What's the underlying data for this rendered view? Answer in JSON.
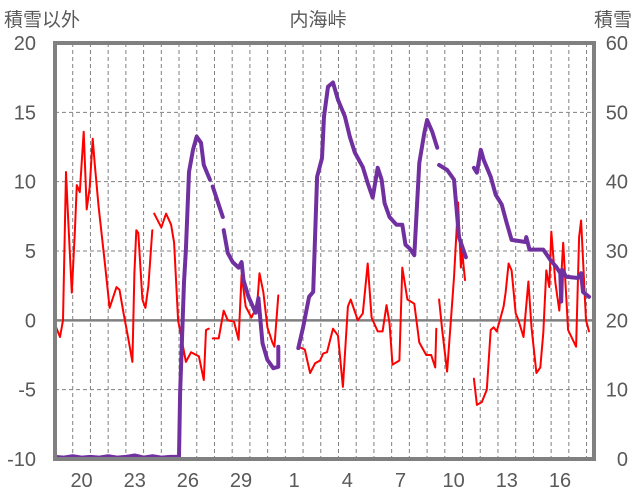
{
  "chart_data": {
    "type": "line",
    "title": "内海峠",
    "ylabel_left": "積雪以外",
    "ylabel_right": "積雪",
    "ylim_left": [
      -10,
      20
    ],
    "ylim_right": [
      0,
      60
    ],
    "yticks_left": [
      "20",
      "15",
      "10",
      "5",
      "0",
      "-5",
      "-10"
    ],
    "yticks_left_values": [
      20,
      15,
      10,
      5,
      0,
      -5,
      -10
    ],
    "yticks_right": [
      "60",
      "50",
      "40",
      "30",
      "20",
      "10",
      "0"
    ],
    "yticks_right_values": [
      60,
      50,
      40,
      30,
      20,
      10,
      0
    ],
    "x_unit": "days since start of day 19",
    "xlim": [
      0,
      30.42
    ],
    "xticks": [
      "20",
      "23",
      "26",
      "29",
      "1",
      "4",
      "7",
      "10",
      "13",
      "16"
    ],
    "xticks_values": [
      1.5,
      4.5,
      7.5,
      10.5,
      13.5,
      16.5,
      19.5,
      22.5,
      25.5,
      28.5
    ],
    "grid": true,
    "series": [
      {
        "name": "積雪以外",
        "axis": "left",
        "color": "#ff0000",
        "segments": [
          [
            [
              0.06,
              -0.5
            ],
            [
              0.28,
              -1.2
            ],
            [
              0.45,
              0.0
            ],
            [
              0.62,
              10.7
            ],
            [
              0.73,
              7.7
            ],
            [
              0.95,
              2.0
            ],
            [
              1.12,
              6.3
            ],
            [
              1.23,
              9.75
            ],
            [
              1.4,
              9.25
            ],
            [
              1.62,
              13.6
            ],
            [
              1.79,
              8.0
            ],
            [
              1.96,
              9.6
            ],
            [
              2.13,
              13.1
            ],
            [
              2.24,
              11.3
            ],
            [
              2.46,
              8.2
            ],
            [
              2.8,
              4.3
            ],
            [
              3.08,
              0.9
            ],
            [
              3.47,
              2.4
            ],
            [
              3.64,
              2.2
            ],
            [
              3.87,
              0.5
            ],
            [
              4.15,
              -1.4
            ],
            [
              4.37,
              -3.0
            ],
            [
              4.48,
              3.4
            ],
            [
              4.59,
              6.5
            ],
            [
              4.7,
              6.3
            ],
            [
              4.93,
              1.5
            ],
            [
              5.1,
              0.9
            ],
            [
              5.27,
              2.5
            ],
            [
              5.49,
              6.5
            ]
          ],
          [
            [
              5.6,
              7.7
            ],
            [
              6.0,
              6.7
            ],
            [
              6.27,
              7.7
            ],
            [
              6.55,
              6.9
            ],
            [
              6.72,
              5.6
            ],
            [
              6.95,
              0.0
            ],
            [
              7.39,
              -3.0
            ],
            [
              7.68,
              -2.3
            ],
            [
              8.12,
              -2.6
            ],
            [
              8.4,
              -4.3
            ],
            [
              8.52,
              -0.7
            ],
            [
              8.68,
              -0.6
            ]
          ],
          [
            [
              8.9,
              -1.3
            ],
            [
              9.24,
              -1.3
            ],
            [
              9.52,
              0.7
            ],
            [
              9.75,
              0.0
            ],
            [
              10.1,
              -0.1
            ],
            [
              10.36,
              -1.4
            ],
            [
              10.53,
              3.3
            ],
            [
              10.76,
              1.0
            ],
            [
              11.09,
              0.2
            ],
            [
              11.2,
              0.5
            ],
            [
              11.37,
              0.5
            ],
            [
              11.54,
              3.4
            ],
            [
              11.76,
              2.0
            ],
            [
              11.99,
              -0.5
            ],
            [
              12.27,
              -1.6
            ],
            [
              12.38,
              -1.9
            ],
            [
              12.6,
              1.8
            ]
          ],
          [
            [
              13.73,
              -1.9
            ],
            [
              14.1,
              -2.1
            ],
            [
              14.4,
              -3.8
            ],
            [
              14.68,
              -3.1
            ],
            [
              14.96,
              -2.9
            ],
            [
              15.13,
              -2.4
            ],
            [
              15.35,
              -2.3
            ],
            [
              15.69,
              -0.6
            ],
            [
              15.97,
              -1.1
            ],
            [
              16.25,
              -4.8
            ],
            [
              16.53,
              1.0
            ],
            [
              16.69,
              1.5
            ],
            [
              17.09,
              0.0
            ],
            [
              17.37,
              0.5
            ],
            [
              17.65,
              4.1
            ],
            [
              17.87,
              0.2
            ],
            [
              18.21,
              -0.8
            ],
            [
              18.49,
              -0.8
            ],
            [
              18.71,
              1.1
            ],
            [
              18.88,
              -0.2
            ],
            [
              19.05,
              -3.2
            ],
            [
              19.44,
              -2.9
            ],
            [
              19.6,
              3.8
            ],
            [
              19.89,
              1.5
            ],
            [
              20.28,
              1.2
            ],
            [
              20.56,
              -1.6
            ],
            [
              20.95,
              -2.5
            ],
            [
              21.23,
              -2.5
            ],
            [
              21.46,
              -3.4
            ],
            [
              21.52,
              -0.6
            ]
          ],
          [
            [
              21.68,
              1.5
            ],
            [
              21.85,
              -0.7
            ],
            [
              22.13,
              -3.7
            ],
            [
              22.41,
              1.2
            ],
            [
              22.52,
              3.1
            ],
            [
              22.75,
              8.5
            ],
            [
              22.91,
              3.8
            ],
            [
              22.97,
              5.1
            ],
            [
              23.14,
              2.9
            ]
          ],
          [
            [
              23.64,
              -4.2
            ],
            [
              23.81,
              -6.1
            ],
            [
              24.09,
              -5.9
            ],
            [
              24.37,
              -5.0
            ],
            [
              24.59,
              -0.7
            ],
            [
              24.76,
              -0.5
            ],
            [
              24.93,
              -0.8
            ],
            [
              25.15,
              0.2
            ],
            [
              25.32,
              1.0
            ],
            [
              25.43,
              2.0
            ],
            [
              25.6,
              4.1
            ],
            [
              25.77,
              3.6
            ],
            [
              26.0,
              0.5
            ],
            [
              26.16,
              0.0
            ],
            [
              26.44,
              -1.2
            ],
            [
              26.72,
              2.8
            ],
            [
              26.89,
              -0.5
            ],
            [
              27.17,
              -3.8
            ],
            [
              27.39,
              -3.4
            ],
            [
              27.56,
              -0.9
            ],
            [
              27.73,
              3.6
            ],
            [
              27.9,
              2.4
            ],
            [
              28.01,
              6.4
            ],
            [
              28.24,
              2.7
            ],
            [
              28.46,
              0.7
            ],
            [
              28.68,
              5.6
            ],
            [
              28.96,
              -0.7
            ],
            [
              29.41,
              -1.9
            ],
            [
              29.58,
              6.0
            ],
            [
              29.69,
              7.2
            ],
            [
              29.97,
              0.0
            ],
            [
              30.14,
              -0.8
            ]
          ]
        ]
      },
      {
        "name": "積雪",
        "axis": "right",
        "color": "#7030a0",
        "segments": [
          [
            [
              0.0,
              0.3
            ],
            [
              0.5,
              0.2
            ],
            [
              1.0,
              0.4
            ],
            [
              1.5,
              0.2
            ],
            [
              2.0,
              0.3
            ],
            [
              2.5,
              0.2
            ],
            [
              3.0,
              0.4
            ],
            [
              3.5,
              0.2
            ],
            [
              4.0,
              0.3
            ],
            [
              4.5,
              0.5
            ],
            [
              5.0,
              0.2
            ],
            [
              5.5,
              0.4
            ],
            [
              6.0,
              0.2
            ],
            [
              6.5,
              0.3
            ],
            [
              7.0,
              0.3
            ],
            [
              7.06,
              9.5
            ],
            [
              7.28,
              25.5
            ],
            [
              7.39,
              30.2
            ],
            [
              7.56,
              41.4
            ],
            [
              7.79,
              44.6
            ],
            [
              8.0,
              46.5
            ],
            [
              8.24,
              45.6
            ],
            [
              8.4,
              42.4
            ],
            [
              8.74,
              40.3
            ]
          ],
          [
            [
              8.9,
              39.3
            ],
            [
              9.2,
              37.0
            ],
            [
              9.47,
              34.9
            ]
          ],
          [
            [
              9.52,
              33.0
            ],
            [
              9.75,
              29.7
            ],
            [
              10.03,
              28.4
            ],
            [
              10.36,
              27.6
            ],
            [
              10.53,
              28.4
            ],
            [
              10.64,
              25.8
            ],
            [
              10.92,
              23.4
            ],
            [
              11.32,
              21.1
            ],
            [
              11.48,
              23.2
            ],
            [
              11.71,
              16.7
            ],
            [
              11.99,
              14.3
            ],
            [
              12.32,
              13.1
            ],
            [
              12.6,
              13.3
            ],
            [
              12.6,
              16.2
            ]
          ],
          [
            [
              13.73,
              16.0
            ],
            [
              14.0,
              19.0
            ],
            [
              14.34,
              23.4
            ],
            [
              14.57,
              24.1
            ],
            [
              14.79,
              40.7
            ],
            [
              15.07,
              43.4
            ],
            [
              15.18,
              49.4
            ],
            [
              15.41,
              53.7
            ],
            [
              15.69,
              54.3
            ],
            [
              15.97,
              51.8
            ],
            [
              16.36,
              49.4
            ],
            [
              16.64,
              46.5
            ],
            [
              16.92,
              44.2
            ],
            [
              17.37,
              42.1
            ],
            [
              17.65,
              39.8
            ],
            [
              17.93,
              37.7
            ],
            [
              18.21,
              42.0
            ],
            [
              18.43,
              40.3
            ],
            [
              18.6,
              36.9
            ],
            [
              18.88,
              34.9
            ],
            [
              19.27,
              33.8
            ],
            [
              19.6,
              33.8
            ],
            [
              19.78,
              30.9
            ],
            [
              20.0,
              30.4
            ],
            [
              20.28,
              29.4
            ],
            [
              20.56,
              42.7
            ],
            [
              20.84,
              47.0
            ],
            [
              21.0,
              48.9
            ],
            [
              21.29,
              47.2
            ],
            [
              21.57,
              44.9
            ]
          ],
          [
            [
              21.68,
              42.4
            ],
            [
              22.13,
              41.7
            ],
            [
              22.52,
              40.3
            ],
            [
              22.8,
              32.0
            ],
            [
              23.19,
              29.1
            ]
          ],
          [
            [
              23.64,
              42.0
            ],
            [
              23.81,
              41.3
            ],
            [
              24.03,
              44.6
            ],
            [
              24.2,
              43.1
            ],
            [
              24.59,
              40.7
            ],
            [
              24.87,
              38.1
            ],
            [
              25.21,
              36.7
            ],
            [
              25.49,
              34.1
            ],
            [
              25.77,
              31.6
            ],
            [
              26.55,
              31.3
            ],
            [
              26.6,
              32.0
            ],
            [
              26.78,
              30.2
            ],
            [
              27.56,
              30.2
            ],
            [
              27.96,
              28.7
            ],
            [
              28.29,
              27.7
            ],
            [
              28.52,
              26.8
            ],
            [
              28.57,
              22.7
            ],
            [
              28.62,
              27.3
            ],
            [
              28.85,
              26.3
            ],
            [
              29.52,
              26.1
            ],
            [
              29.69,
              26.8
            ],
            [
              29.8,
              24.1
            ],
            [
              30.14,
              23.4
            ]
          ]
        ]
      }
    ]
  }
}
